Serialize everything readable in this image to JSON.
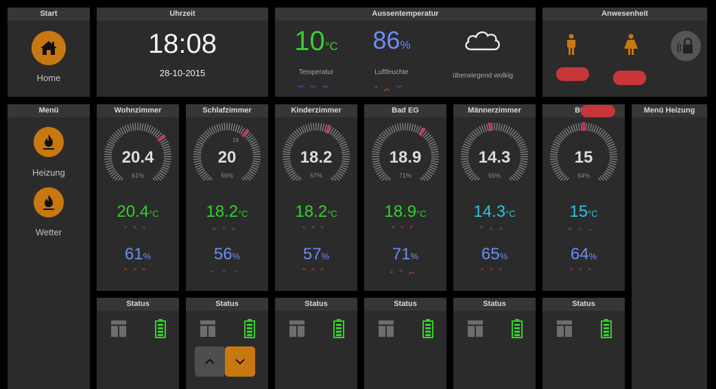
{
  "start": {
    "title": "Start",
    "home_label": "Home",
    "home_icon": "home-icon"
  },
  "uhrzeit": {
    "title": "Uhrzeit",
    "time": "18:08",
    "date": "28-10-2015"
  },
  "aussen": {
    "title": "Aussentemperatur",
    "temp_value": "10",
    "temp_unit": "°C",
    "temp_label": "Temperatur",
    "hum_value": "86",
    "hum_unit": "%",
    "hum_label": "Luftfeuchte",
    "weather_label": "überwiegend wolkig",
    "weather_icon": "cloud-icon"
  },
  "anwesenheit": {
    "title": "Anwesenheit",
    "icons": [
      "male-person-icon",
      "female-person-icon",
      "alarm-lock-icon"
    ]
  },
  "menu": {
    "title": "Menü",
    "items": [
      {
        "label": "Heizung",
        "icon": "flame-icon"
      },
      {
        "label": "Wetter",
        "icon": "flame-icon"
      }
    ]
  },
  "menu_heizung": {
    "title": "Menü Heizung"
  },
  "rooms": [
    {
      "name": "Wohnzimmer",
      "gauge_value": "20.4",
      "gauge_humidity": "61%",
      "temperature": "20.4",
      "temp_unit": "°C",
      "temp_color": "green",
      "humidity": "61",
      "hum_unit": "%",
      "fraction": 0.68
    },
    {
      "name": "Schlafzimmer",
      "gauge_value": "20",
      "gauge_humidity": "56%",
      "gauge_mark": "18",
      "temperature": "18.2",
      "temp_unit": "°C",
      "temp_color": "green",
      "humidity": "56",
      "hum_unit": "%",
      "fraction": 0.63
    },
    {
      "name": "Kinderzimmer",
      "gauge_value": "18.2",
      "gauge_humidity": "57%",
      "temperature": "18.2",
      "temp_unit": "°C",
      "temp_color": "green",
      "humidity": "57",
      "hum_unit": "%",
      "fraction": 0.58
    },
    {
      "name": "Bad EG",
      "gauge_value": "18.9",
      "gauge_humidity": "71%",
      "temperature": "18.9",
      "temp_unit": "°C",
      "temp_color": "green",
      "humidity": "71",
      "hum_unit": "%",
      "fraction": 0.62
    },
    {
      "name": "Männerzimmer",
      "gauge_value": "14.3",
      "gauge_humidity": "65%",
      "temperature": "14.3",
      "temp_unit": "°C",
      "temp_color": "cyan",
      "humidity": "65",
      "hum_unit": "%",
      "fraction": 0.47
    },
    {
      "name": "Büro",
      "gauge_value": "15",
      "gauge_humidity": "64%",
      "temperature": "15",
      "temp_unit": "°C",
      "temp_color": "cyan",
      "humidity": "64",
      "hum_unit": "%",
      "fraction": 0.5
    }
  ],
  "status": {
    "title": "Status",
    "blind_icon": "window-blind-icon",
    "battery_icon": "battery-full-icon",
    "up_icon": "chevron-up-icon",
    "down_icon": "chevron-down-icon"
  },
  "colors": {
    "accent": "#c87810",
    "green": "#34d12c",
    "blue": "#6b8ef2",
    "cyan": "#2fc3e0",
    "up": "#e04a4a",
    "down": "#5560ea",
    "gauge_needle": "#c2336a"
  }
}
